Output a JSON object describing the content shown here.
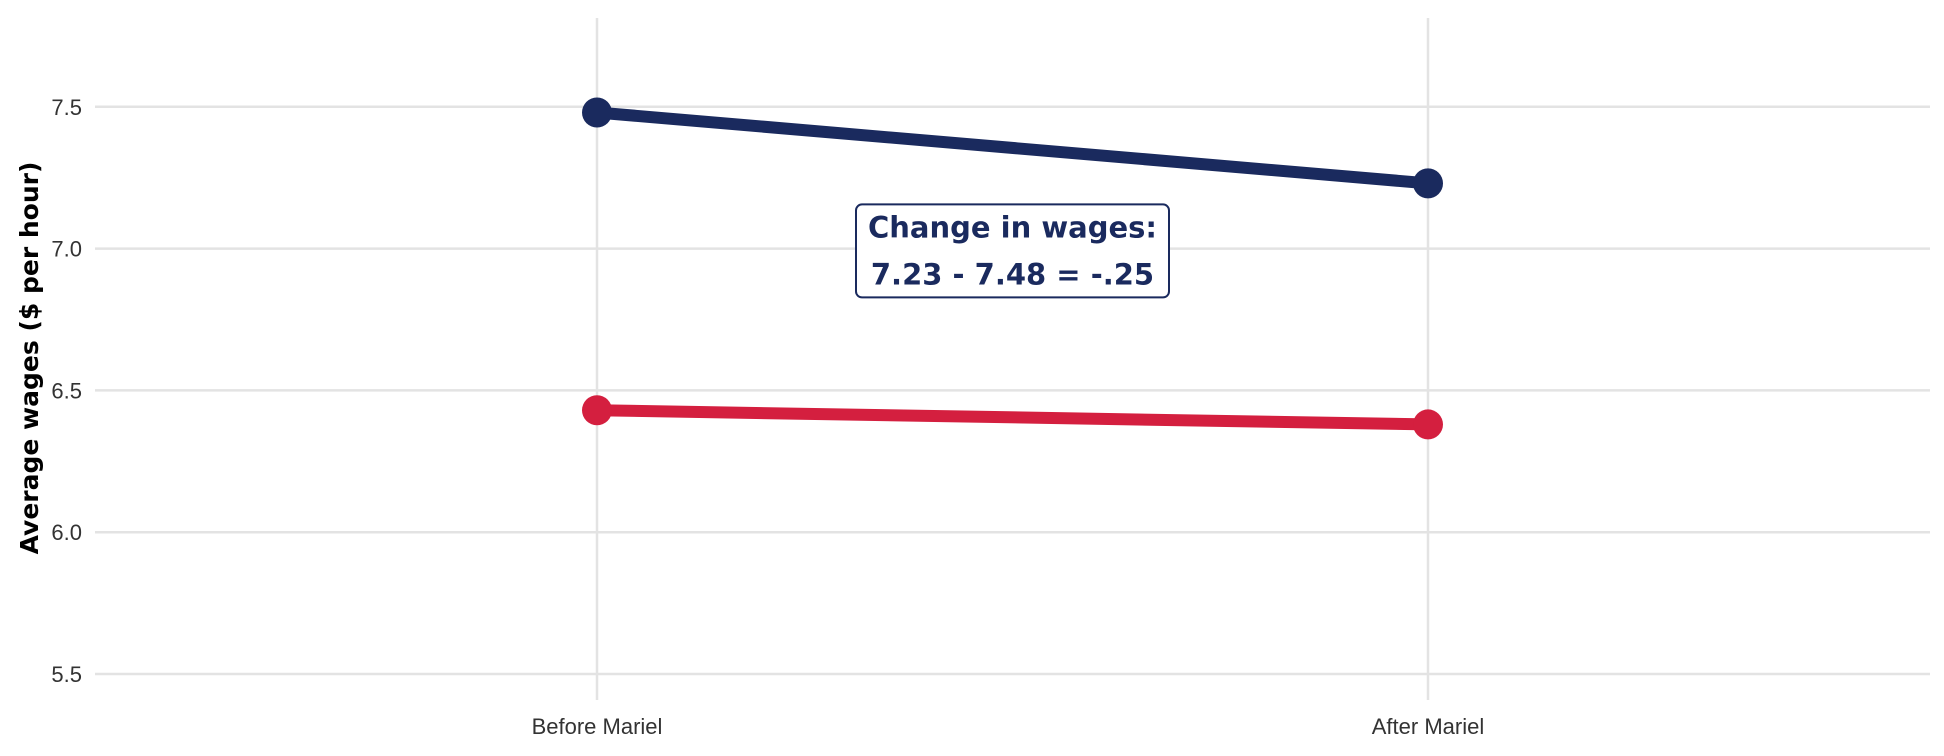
{
  "chart_data": {
    "type": "line",
    "title": "",
    "xlabel": "",
    "ylabel": "Average wages ($ per hour)",
    "categories": [
      "Before Mariel",
      "After Mariel"
    ],
    "ylim": [
      5.4,
      7.8
    ],
    "yticks": [
      5.5,
      6.0,
      6.5,
      7.0,
      7.5
    ],
    "ytick_labels": [
      "5.5",
      "6.0",
      "6.5",
      "7.0",
      "7.5"
    ],
    "grid": true,
    "legend": "none",
    "series": [
      {
        "values": [
          7.48,
          7.23
        ],
        "color": "#1a2a5e"
      },
      {
        "values": [
          6.43,
          6.38
        ],
        "color": "#d41f3f"
      }
    ],
    "annotation": {
      "lines": [
        "Change in wages:",
        "7.23 - 7.48 = -.25"
      ],
      "x": 0.5,
      "y": 6.99,
      "color": "#1a2a5e"
    }
  }
}
